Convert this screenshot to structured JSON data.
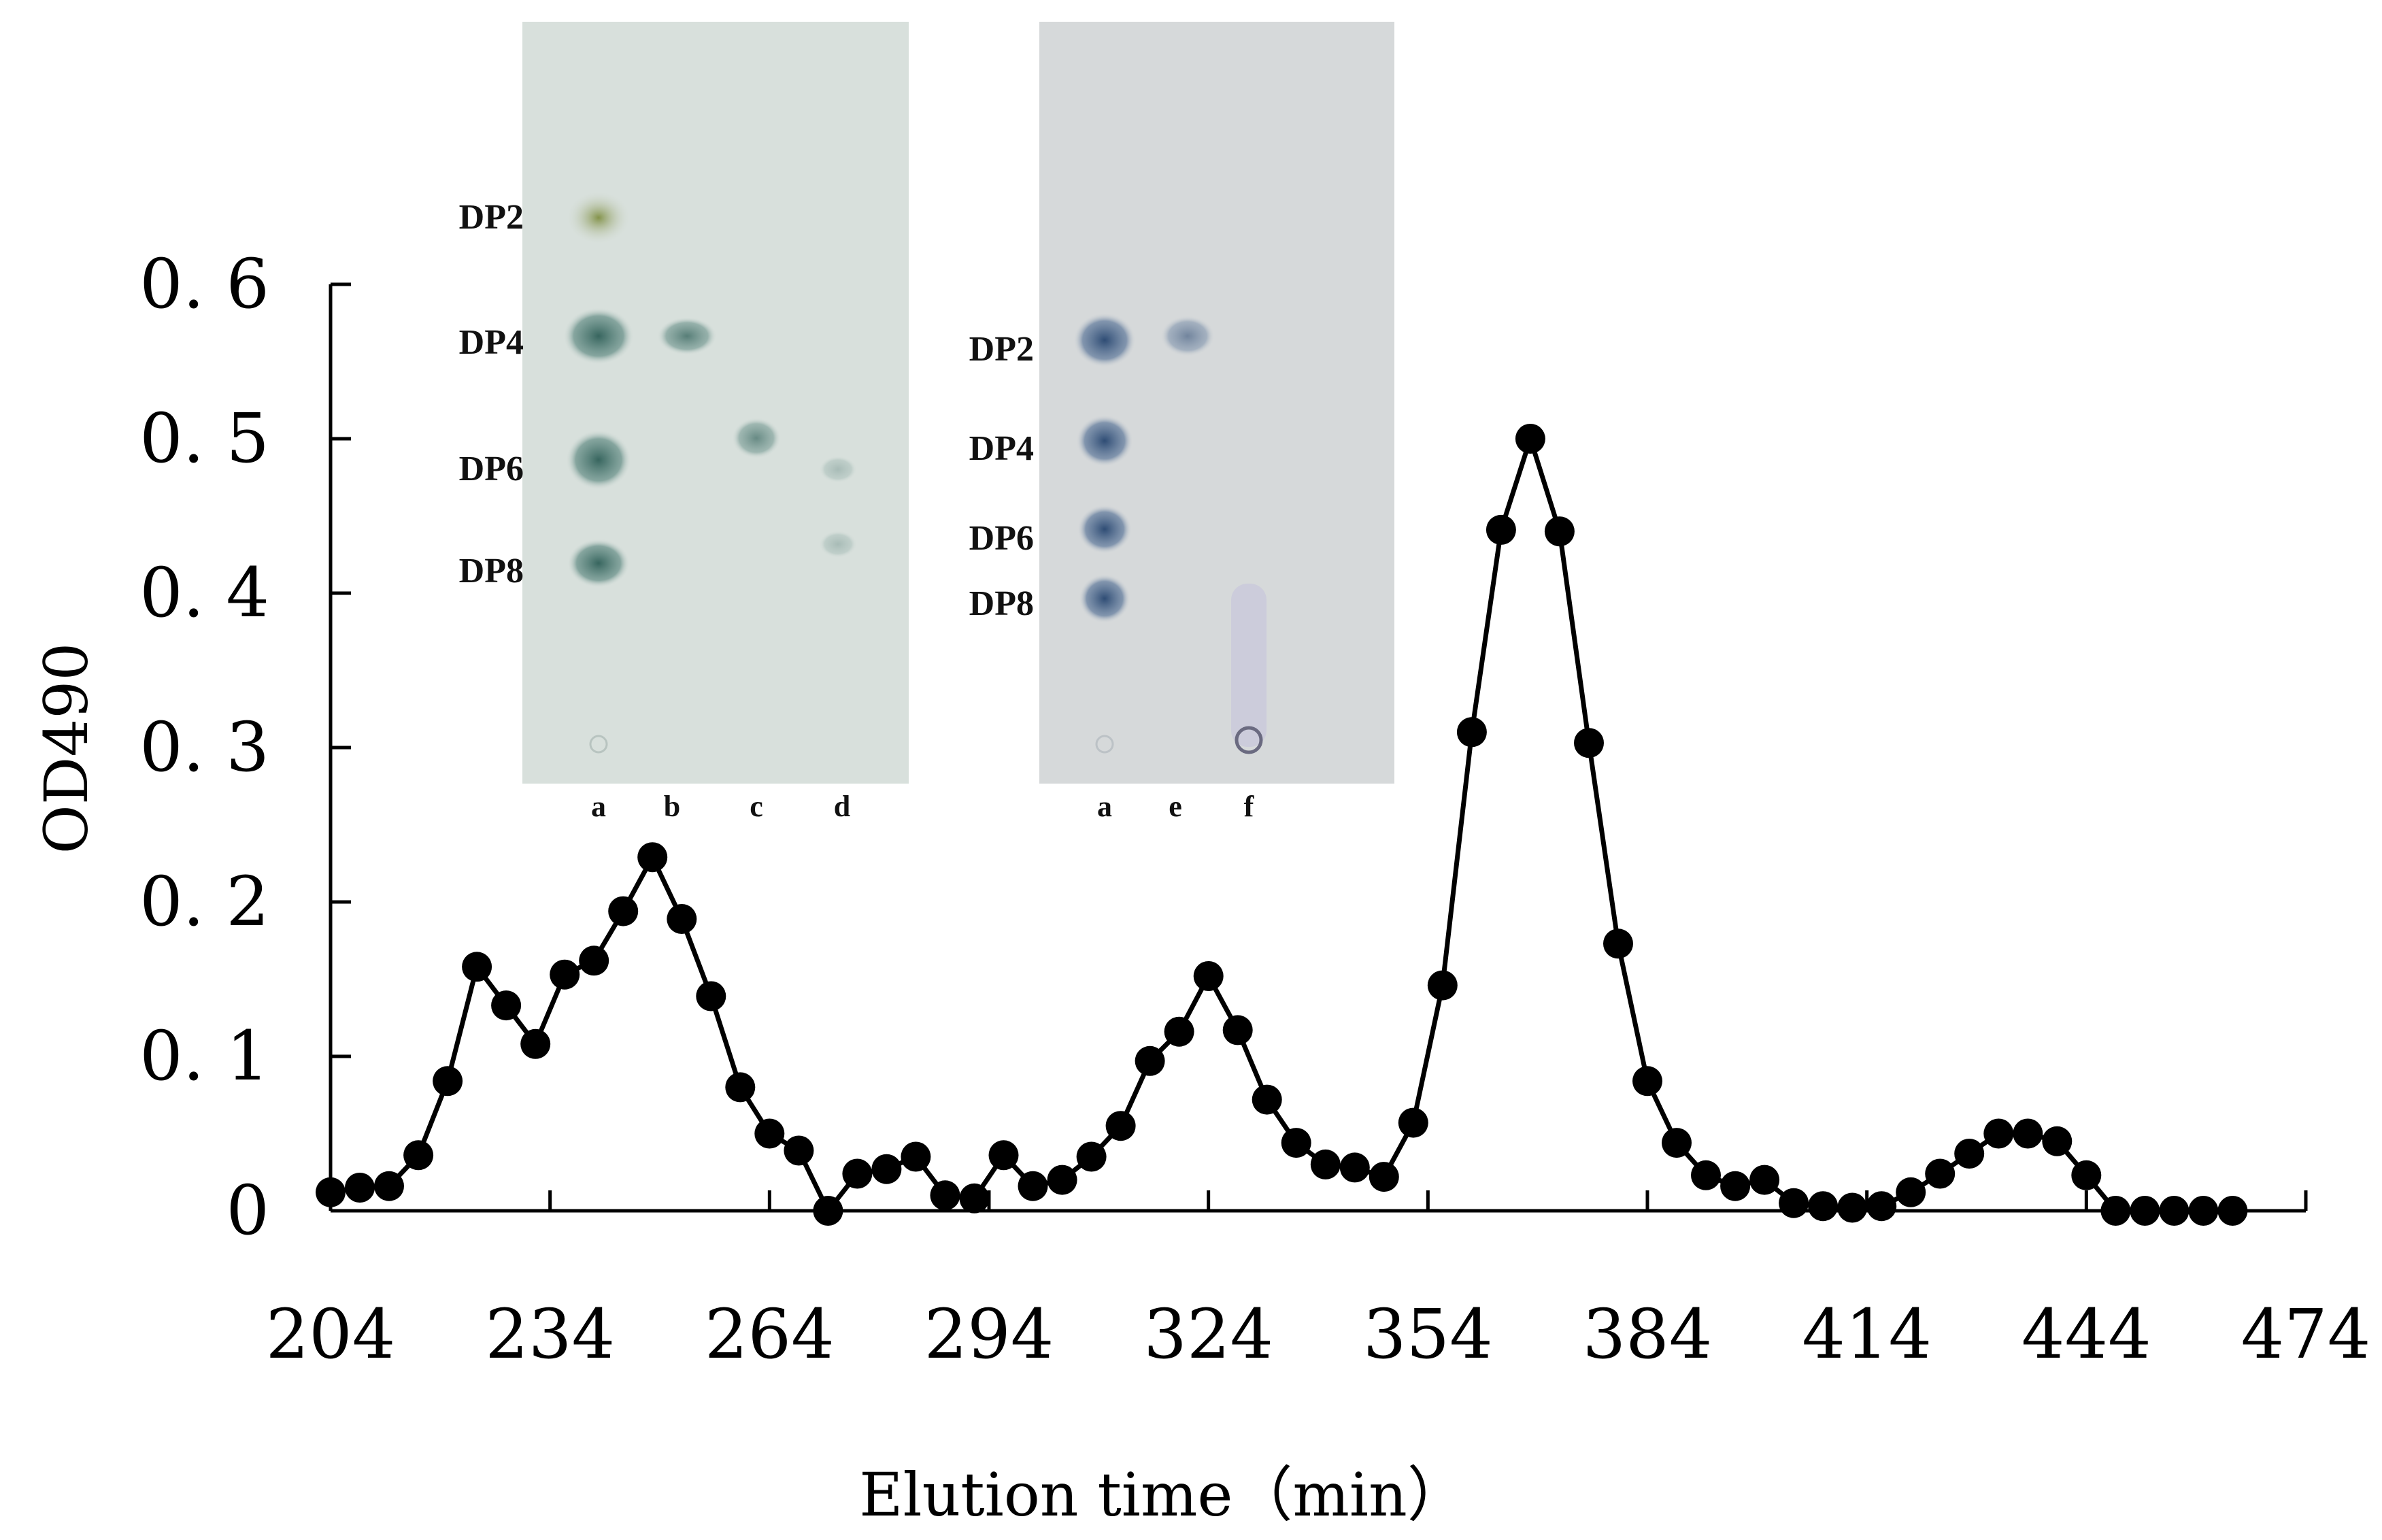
{
  "chart_data": {
    "type": "line",
    "title": "",
    "xlabel": "Elution time（min）",
    "ylabel": "OD490",
    "xlim": [
      204,
      474
    ],
    "ylim": [
      0,
      0.6
    ],
    "xticks": [
      204,
      234,
      264,
      294,
      324,
      354,
      384,
      414,
      444,
      474
    ],
    "xtick_labels": [
      "204",
      "234",
      "264",
      "294",
      "324",
      "354",
      "384",
      "414",
      "444",
      "474"
    ],
    "yticks": [
      0,
      0.1,
      0.2,
      0.3,
      0.4,
      0.5,
      0.6
    ],
    "ytick_labels": [
      "0",
      "0. 1",
      "0. 2",
      "0. 3",
      "0. 4",
      "0. 5",
      "0. 6"
    ],
    "grid": false,
    "legend": false,
    "marker": "filled-circle",
    "line_color": "#000000",
    "series": [
      {
        "x": [
          204,
          208,
          212,
          216,
          220,
          224,
          228,
          232,
          236,
          240,
          244,
          248,
          252,
          256,
          260,
          264,
          268,
          272,
          276,
          280,
          284,
          288,
          292,
          296,
          300,
          304,
          308,
          312,
          316,
          320,
          324,
          328,
          332,
          336,
          340,
          344,
          348,
          352,
          356,
          360,
          364,
          368,
          372,
          376,
          380,
          384,
          388,
          392,
          396,
          400,
          404,
          408,
          412,
          416,
          420,
          424,
          428,
          432,
          436,
          440,
          444,
          448,
          452,
          456,
          460,
          464
        ],
        "y": [
          0.012,
          0.015,
          0.016,
          0.036,
          0.084,
          0.158,
          0.133,
          0.108,
          0.153,
          0.162,
          0.194,
          0.229,
          0.189,
          0.139,
          0.08,
          0.05,
          0.039,
          0.0,
          0.024,
          0.027,
          0.035,
          0.01,
          0.008,
          0.036,
          0.016,
          0.02,
          0.035,
          0.055,
          0.097,
          0.116,
          0.152,
          0.117,
          0.072,
          0.044,
          0.03,
          0.028,
          0.022,
          0.057,
          0.146,
          0.31,
          0.441,
          0.5,
          0.44,
          0.303,
          0.173,
          0.084,
          0.044,
          0.023,
          0.016,
          0.02,
          0.005,
          0.003,
          0.002,
          0.003,
          0.012,
          0.024,
          0.037,
          0.05,
          0.05,
          0.045,
          0.023,
          0.0,
          0.0,
          0.0,
          0.0,
          0.0
        ]
      }
    ]
  },
  "insets": [
    {
      "spot_labels": [
        "DP2",
        "DP4",
        "DP6",
        "DP8"
      ],
      "lane_labels": [
        "a",
        "b",
        "c",
        "d"
      ],
      "background": "#d8e0dc",
      "spot_color": "#3a6a64"
    },
    {
      "spot_labels": [
        "DP2",
        "DP4",
        "DP6",
        "DP8"
      ],
      "lane_labels": [
        "a",
        "e",
        "f"
      ],
      "background": "#d6d9da",
      "spot_color": "#34507a"
    }
  ]
}
